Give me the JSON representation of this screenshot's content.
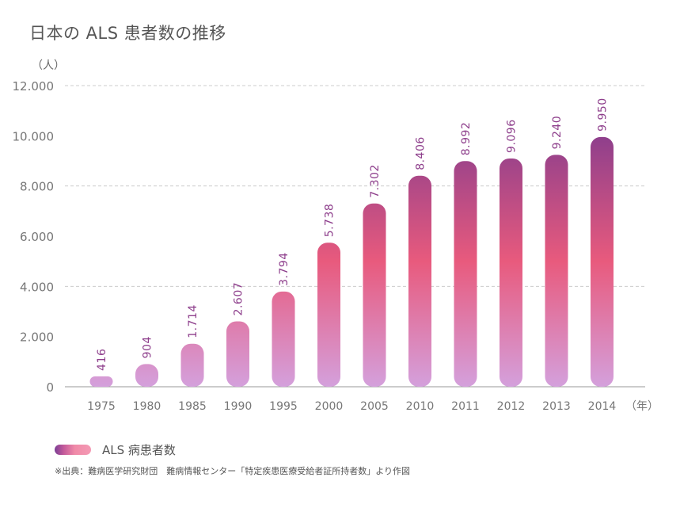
{
  "title": "日本の ALS 患者数の推移",
  "y_unit_label": "（人）",
  "x_unit_label": "（年）",
  "legend": {
    "label": "ALS 病患者数"
  },
  "source": "※出典：難病医学研究財団　難病情報センター「特定疾患医療受給者証所持者数」より作図",
  "colors": {
    "bar_top": "#8e3f8c",
    "bar_mid": "#e85a7d",
    "bar_bottom": "#d4a0dc",
    "value_label": "#8e3f8c",
    "grid": "#cccccc",
    "axis": "#999999",
    "tick_label": "#777777"
  },
  "chart_data": {
    "type": "bar",
    "title": "日本の ALS 患者数の推移",
    "xlabel": "（年）",
    "ylabel": "（人）",
    "categories": [
      "1975",
      "1980",
      "1985",
      "1990",
      "1995",
      "2000",
      "2005",
      "2010",
      "2011",
      "2012",
      "2013",
      "2014"
    ],
    "series": [
      {
        "name": "ALS 病患者数",
        "values": [
          416,
          904,
          1714,
          2607,
          3794,
          5738,
          7302,
          8406,
          8992,
          9096,
          9240,
          9950
        ],
        "labels": [
          "416",
          "904",
          "1.714",
          "2.607",
          "3.794",
          "5.738",
          "7.302",
          "8.406",
          "8.992",
          "9.096",
          "9.240",
          "9.950"
        ]
      }
    ],
    "ylim": [
      0,
      12000
    ],
    "yticks": [
      0,
      2000,
      4000,
      6000,
      8000,
      10000,
      12000
    ],
    "ytick_labels": [
      "0",
      "2.000",
      "4.000",
      "6.000",
      "8.000",
      "10.000",
      "12.000"
    ],
    "gridlines": [
      4000,
      8000,
      12000
    ],
    "grid": true,
    "legend_position": "bottom-left"
  }
}
